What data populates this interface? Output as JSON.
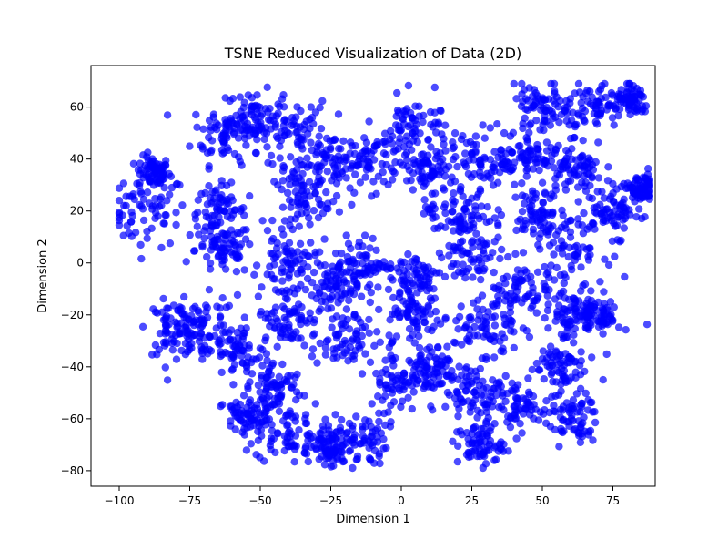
{
  "chart_data": {
    "type": "scatter",
    "title": "TSNE Reduced Visualization of Data (2D)",
    "xlabel": "Dimension 1",
    "ylabel": "Dimension 2",
    "xlim": [
      -110,
      90
    ],
    "ylim": [
      -86,
      76
    ],
    "xticks": [
      -100,
      -75,
      -50,
      -25,
      0,
      25,
      50,
      75
    ],
    "yticks": [
      -80,
      -60,
      -40,
      -20,
      0,
      20,
      40,
      60
    ],
    "xtick_labels": [
      "−100",
      "−75",
      "−50",
      "−25",
      "0",
      "25",
      "50",
      "75"
    ],
    "ytick_labels": [
      "−80",
      "−60",
      "−40",
      "−20",
      "0",
      "20",
      "40",
      "60"
    ],
    "grid": false,
    "legend": false,
    "marker_color": "#0000ff",
    "marker_alpha": 0.7,
    "clusters": [
      {
        "x": -90,
        "y": 20,
        "spread": 7
      },
      {
        "x": -88,
        "y": 35,
        "spread": 3
      },
      {
        "x": -62,
        "y": 50,
        "spread": 6
      },
      {
        "x": -52,
        "y": 56,
        "spread": 5
      },
      {
        "x": -65,
        "y": 20,
        "spread": 5
      },
      {
        "x": -63,
        "y": 5,
        "spread": 5
      },
      {
        "x": -70,
        "y": -25,
        "spread": 6
      },
      {
        "x": -80,
        "y": -25,
        "spread": 5
      },
      {
        "x": -58,
        "y": -35,
        "spread": 6
      },
      {
        "x": -45,
        "y": -48,
        "spread": 5
      },
      {
        "x": -40,
        "y": -65,
        "spread": 6
      },
      {
        "x": -15,
        "y": -68,
        "spread": 5
      },
      {
        "x": -25,
        "y": -72,
        "spread": 4
      },
      {
        "x": -38,
        "y": 50,
        "spread": 6
      },
      {
        "x": -25,
        "y": 38,
        "spread": 6
      },
      {
        "x": -35,
        "y": 25,
        "spread": 5
      },
      {
        "x": -10,
        "y": 40,
        "spread": 6
      },
      {
        "x": 5,
        "y": 52,
        "spread": 6
      },
      {
        "x": 10,
        "y": 35,
        "spread": 5
      },
      {
        "x": -40,
        "y": 0,
        "spread": 5
      },
      {
        "x": -40,
        "y": -20,
        "spread": 6
      },
      {
        "x": -25,
        "y": -10,
        "spread": 5
      },
      {
        "x": -20,
        "y": -30,
        "spread": 6
      },
      {
        "x": -15,
        "y": 0,
        "spread": 5
      },
      {
        "x": 5,
        "y": -5,
        "spread": 5
      },
      {
        "x": 5,
        "y": -20,
        "spread": 5
      },
      {
        "x": 0,
        "y": -45,
        "spread": 6
      },
      {
        "x": 10,
        "y": -40,
        "spread": 5
      },
      {
        "x": 25,
        "y": -50,
        "spread": 5
      },
      {
        "x": 28,
        "y": -70,
        "spread": 4
      },
      {
        "x": 40,
        "y": -55,
        "spread": 5
      },
      {
        "x": 55,
        "y": -40,
        "spread": 5
      },
      {
        "x": 60,
        "y": -60,
        "spread": 5
      },
      {
        "x": 20,
        "y": 20,
        "spread": 6
      },
      {
        "x": 30,
        "y": 40,
        "spread": 6
      },
      {
        "x": 25,
        "y": 5,
        "spread": 6
      },
      {
        "x": 40,
        "y": -10,
        "spread": 5
      },
      {
        "x": 30,
        "y": -25,
        "spread": 6
      },
      {
        "x": 50,
        "y": 60,
        "spread": 5
      },
      {
        "x": 68,
        "y": 60,
        "spread": 5
      },
      {
        "x": 82,
        "y": 62,
        "spread": 3
      },
      {
        "x": 62,
        "y": 35,
        "spread": 5
      },
      {
        "x": 48,
        "y": 20,
        "spread": 5
      },
      {
        "x": 60,
        "y": 5,
        "spread": 6
      },
      {
        "x": 75,
        "y": 20,
        "spread": 5
      },
      {
        "x": 85,
        "y": 28,
        "spread": 3
      },
      {
        "x": 60,
        "y": -20,
        "spread": 5
      },
      {
        "x": 70,
        "y": -20,
        "spread": 4
      },
      {
        "x": 45,
        "y": 40,
        "spread": 5
      },
      {
        "x": -55,
        "y": -60,
        "spread": 4
      }
    ]
  }
}
